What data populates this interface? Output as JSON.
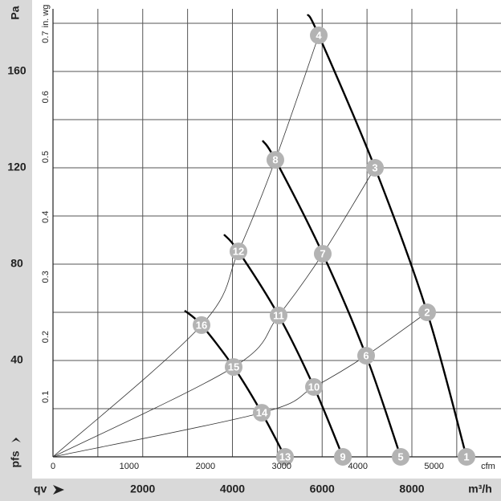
{
  "chart_data": {
    "type": "line",
    "x_label": "m³/h",
    "x_arrow_label": "qv",
    "x2_label": "cfm",
    "y_label": "Pa",
    "y_arrow_label": "pfs",
    "y2_label": "in. wg",
    "xlim": [
      0,
      10000
    ],
    "xticks": [
      2000,
      4000,
      6000,
      8000
    ],
    "xgrid": [
      1000,
      2000,
      3000,
      4000,
      5000,
      6000,
      7000,
      8000,
      9000
    ],
    "x2lim": [
      0,
      5886
    ],
    "x2ticks": [
      0,
      1000,
      2000,
      3000,
      4000,
      5000
    ],
    "ylim": [
      0,
      186
    ],
    "yticks": [
      40,
      80,
      120,
      160
    ],
    "ygrid": [
      20,
      40,
      60,
      80,
      100,
      120,
      140,
      160,
      180
    ],
    "y2lim": [
      0,
      0.747
    ],
    "y2ticks": [
      0.1,
      0.2,
      0.3,
      0.4,
      0.5,
      0.6,
      0.7
    ],
    "series": [
      {
        "kind": "fan",
        "color": "#000000",
        "x": [
          5674,
          5924,
          7177,
          8340,
          9217
        ],
        "values": [
          183.7,
          175,
          120,
          60,
          0
        ]
      },
      {
        "kind": "fan",
        "color": "#000000",
        "x": [
          4671,
          4957,
          6013,
          6980,
          7750
        ],
        "values": [
          131.3,
          123.3,
          84.3,
          42,
          0
        ]
      },
      {
        "kind": "fan",
        "color": "#000000",
        "x": [
          3812,
          4134,
          5029,
          5817,
          6461
        ],
        "values": [
          92.3,
          85.3,
          58.7,
          29,
          0
        ]
      },
      {
        "kind": "fan",
        "color": "#000000",
        "x": [
          2935,
          3311,
          4027,
          4653,
          5172
        ],
        "values": [
          60.7,
          54.7,
          37.3,
          18.3,
          0
        ]
      },
      {
        "kind": "system",
        "color": "#333333",
        "x": [
          0,
          4653,
          5817,
          6980,
          8340
        ],
        "values": [
          0,
          18.3,
          29,
          42,
          60
        ]
      },
      {
        "kind": "system",
        "color": "#333333",
        "x": [
          0,
          4027,
          5029,
          6013,
          7177
        ],
        "values": [
          0,
          37.3,
          58.7,
          84.3,
          120
        ]
      },
      {
        "kind": "system",
        "color": "#333333",
        "x": [
          0,
          3311,
          4134,
          4957,
          5924
        ],
        "values": [
          0,
          54.7,
          85.3,
          123.3,
          175
        ]
      }
    ],
    "marker_color": "#b3b3b3",
    "markers": [
      {
        "label": "1",
        "x": 9217,
        "y": 0
      },
      {
        "label": "2",
        "x": 8340,
        "y": 60
      },
      {
        "label": "3",
        "x": 7177,
        "y": 120
      },
      {
        "label": "4",
        "x": 5924,
        "y": 175
      },
      {
        "label": "5",
        "x": 7750,
        "y": 0
      },
      {
        "label": "6",
        "x": 6980,
        "y": 42
      },
      {
        "label": "7",
        "x": 6013,
        "y": 84.3
      },
      {
        "label": "8",
        "x": 4957,
        "y": 123.3
      },
      {
        "label": "9",
        "x": 6461,
        "y": 0
      },
      {
        "label": "10",
        "x": 5817,
        "y": 29
      },
      {
        "label": "11",
        "x": 5029,
        "y": 58.7
      },
      {
        "label": "12",
        "x": 4134,
        "y": 85.3
      },
      {
        "label": "13",
        "x": 5172,
        "y": 0
      },
      {
        "label": "14",
        "x": 4653,
        "y": 18.3
      },
      {
        "label": "15",
        "x": 4027,
        "y": 37.3
      },
      {
        "label": "16",
        "x": 3311,
        "y": 54.7
      }
    ]
  }
}
